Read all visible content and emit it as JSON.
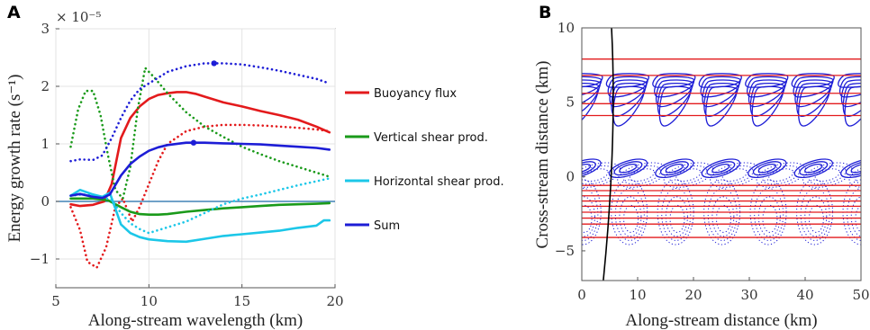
{
  "chart_data": [
    {
      "panel": "A",
      "type": "line",
      "xlabel": "Along-stream wavelength (km)",
      "ylabel": "Energy growth rate (s⁻¹)",
      "y_multiplier": "× 10⁻⁵",
      "xlim": [
        5,
        20
      ],
      "ylim": [
        -1.5,
        3
      ],
      "xticks": [
        "5",
        "10",
        "15",
        "20"
      ],
      "yticks": [
        "−1",
        "0",
        "1",
        "2",
        "3"
      ],
      "grid": true,
      "legend_position": "right",
      "zero_line": true,
      "series": [
        {
          "name": "Buoyancy flux",
          "color": "#e31a1c",
          "style": "solid",
          "x": [
            5.8,
            6.3,
            7,
            7.6,
            8,
            8.5,
            9,
            9.5,
            10,
            10.5,
            11,
            11.5,
            12,
            12.5,
            13,
            14,
            15,
            16,
            17,
            18,
            19,
            19.7
          ],
          "y": [
            -0.05,
            -0.08,
            -0.06,
            0,
            0.3,
            1.1,
            1.45,
            1.65,
            1.78,
            1.85,
            1.88,
            1.9,
            1.9,
            1.87,
            1.82,
            1.72,
            1.65,
            1.57,
            1.5,
            1.42,
            1.3,
            1.2
          ]
        },
        {
          "name": "Buoyancy flux",
          "color": "#e31a1c",
          "style": "dotted",
          "x": [
            5.8,
            6.3,
            6.7,
            7.2,
            7.7,
            8.2,
            8.6,
            9.1,
            9.5,
            10,
            10.5,
            11,
            12,
            13,
            14,
            15,
            16,
            17,
            18,
            19,
            19.7
          ],
          "y": [
            -0.1,
            -0.5,
            -1.05,
            -1.15,
            -0.8,
            -0.1,
            0.05,
            -0.35,
            -0.1,
            0.3,
            0.7,
            1.0,
            1.22,
            1.3,
            1.33,
            1.33,
            1.32,
            1.3,
            1.28,
            1.25,
            1.22
          ]
        },
        {
          "name": "Vertical shear prod.",
          "color": "#1a9a1a",
          "style": "solid",
          "x": [
            5.8,
            7,
            7.8,
            8.5,
            9,
            9.5,
            10,
            10.5,
            11,
            12,
            13,
            14,
            15,
            16,
            17,
            18,
            19,
            19.7
          ],
          "y": [
            0.05,
            0.05,
            0.02,
            -0.1,
            -0.18,
            -0.22,
            -0.23,
            -0.23,
            -0.22,
            -0.18,
            -0.15,
            -0.12,
            -0.1,
            -0.08,
            -0.06,
            -0.05,
            -0.04,
            -0.03
          ]
        },
        {
          "name": "Vertical shear prod.",
          "color": "#1a9a1a",
          "style": "dotted",
          "x": [
            5.8,
            6.2,
            6.6,
            7,
            7.4,
            7.8,
            8.2,
            8.6,
            9,
            9.4,
            9.8,
            10.3,
            11,
            12,
            13,
            14,
            15,
            16,
            17,
            18,
            19,
            19.7
          ],
          "y": [
            0.95,
            1.6,
            1.92,
            1.92,
            1.5,
            0.8,
            0.2,
            0.05,
            0.6,
            1.6,
            2.32,
            2.15,
            1.88,
            1.55,
            1.3,
            1.12,
            0.95,
            0.82,
            0.7,
            0.6,
            0.5,
            0.43
          ]
        },
        {
          "name": "Horizontal shear prod.",
          "color": "#1cc7e8",
          "style": "solid",
          "x": [
            5.8,
            6.3,
            7,
            7.5,
            7.9,
            8.5,
            9,
            9.5,
            10,
            11,
            12,
            13,
            14,
            15,
            16,
            17,
            18,
            19,
            19.4,
            19.7
          ],
          "y": [
            0.1,
            0.2,
            0.12,
            0.08,
            0.15,
            -0.4,
            -0.55,
            -0.62,
            -0.66,
            -0.69,
            -0.7,
            -0.65,
            -0.6,
            -0.57,
            -0.54,
            -0.51,
            -0.46,
            -0.42,
            -0.33,
            -0.33
          ]
        },
        {
          "name": "Horizontal shear prod.",
          "color": "#1cc7e8",
          "style": "dotted",
          "x": [
            5.8,
            6.5,
            7,
            7.5,
            8,
            8.5,
            9,
            9.5,
            10,
            11,
            12,
            13,
            14,
            15,
            16,
            17,
            18,
            19,
            19.7
          ],
          "y": [
            0.1,
            0.12,
            0.1,
            0.08,
            0.02,
            -0.2,
            -0.38,
            -0.48,
            -0.55,
            -0.45,
            -0.35,
            -0.2,
            -0.05,
            0.05,
            0.12,
            0.2,
            0.28,
            0.35,
            0.4
          ]
        },
        {
          "name": "Sum",
          "color": "#1d1dd6",
          "style": "solid",
          "x": [
            5.8,
            6.3,
            7,
            7.5,
            7.9,
            8.5,
            9,
            9.5,
            10,
            10.5,
            11,
            12,
            12.5,
            13,
            14,
            15,
            16,
            17,
            18,
            19,
            19.7
          ],
          "y": [
            0.1,
            0.13,
            0.08,
            0.06,
            0.12,
            0.45,
            0.65,
            0.78,
            0.88,
            0.94,
            0.98,
            1.02,
            1.02,
            1.02,
            1.01,
            1.0,
            0.99,
            0.97,
            0.95,
            0.93,
            0.9
          ]
        },
        {
          "name": "Sum",
          "color": "#1d1dd6",
          "style": "dotted",
          "x": [
            5.8,
            6.3,
            7,
            7.5,
            8,
            8.5,
            9,
            9.5,
            10,
            10.5,
            11,
            12,
            13,
            13.5,
            14,
            15,
            16,
            17,
            18,
            19,
            19.7
          ],
          "y": [
            0.7,
            0.73,
            0.72,
            0.8,
            1.1,
            1.45,
            1.75,
            1.95,
            2.05,
            2.15,
            2.25,
            2.35,
            2.4,
            2.4,
            2.4,
            2.38,
            2.33,
            2.27,
            2.2,
            2.13,
            2.05
          ]
        }
      ],
      "markers": [
        {
          "x": 12.4,
          "y": 1.02,
          "color": "#1d1dd6"
        },
        {
          "x": 13.5,
          "y": 2.4,
          "color": "#1d1dd6"
        }
      ],
      "legend": [
        {
          "label": "Buoyancy flux",
          "color": "#e31a1c"
        },
        {
          "label": "Vertical shear prod.",
          "color": "#1a9a1a"
        },
        {
          "label": "Horizontal shear prod.",
          "color": "#1cc7e8"
        },
        {
          "label": "Sum",
          "color": "#1d1dd6"
        }
      ]
    },
    {
      "panel": "B",
      "type": "contour",
      "xlabel": "Along-stream distance (km)",
      "ylabel": "Cross-stream distance (km)",
      "xlim": [
        0,
        50
      ],
      "ylim": [
        -7,
        10
      ],
      "xticks": [
        "0",
        "10",
        "20",
        "30",
        "40",
        "50"
      ],
      "yticks": [
        "−5",
        "0",
        "5",
        "10"
      ],
      "red_lines_y": [
        7.9,
        6.8,
        5.6,
        4.9,
        4.1,
        -0.6,
        -0.95,
        -1.3,
        -1.65,
        -2.0,
        -2.4,
        -2.8,
        -3.2,
        -4.1
      ],
      "wavelength_km": 8.3,
      "colors": {
        "contour": "#1d1dd6",
        "red": "#e31a1c",
        "black": "#000000"
      }
    }
  ]
}
